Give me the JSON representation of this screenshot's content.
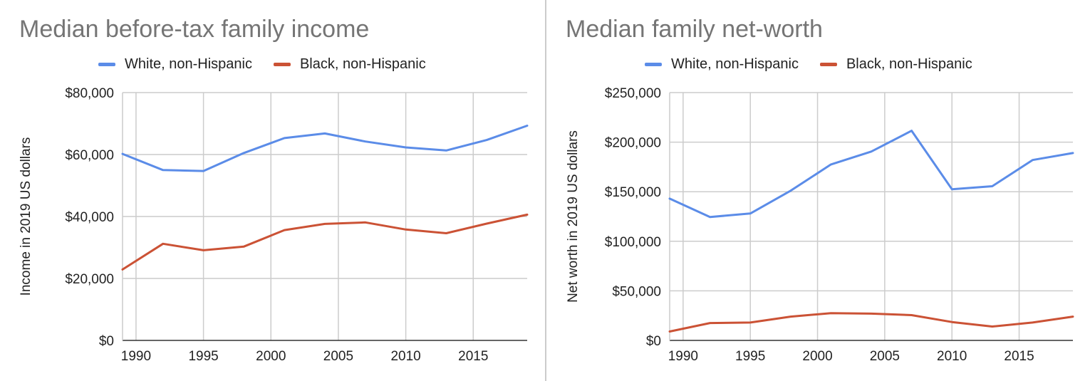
{
  "chart_data": [
    {
      "type": "line",
      "title": "Median before-tax family income",
      "xlabel": "",
      "ylabel": "Income in 2019 US dollars",
      "xlim": [
        1989,
        2019
      ],
      "ylim": [
        0,
        80000
      ],
      "x_ticks": [
        1990,
        1995,
        2000,
        2005,
        2010,
        2015
      ],
      "y_ticks": [
        0,
        20000,
        40000,
        60000,
        80000
      ],
      "y_tick_labels": [
        "$0",
        "$20,000",
        "$40,000",
        "$60,000",
        "$80,000"
      ],
      "legend_position": "top",
      "grid": true,
      "x": [
        1989,
        1992,
        1995,
        1998,
        2001,
        2004,
        2007,
        2010,
        2013,
        2016,
        2019
      ],
      "series": [
        {
          "name": "White, non-Hispanic",
          "color": "#5B8CE8",
          "values": [
            60200,
            55000,
            54700,
            60500,
            65300,
            66800,
            64200,
            62300,
            61300,
            64700,
            69300
          ]
        },
        {
          "name": "Black, non-Hispanic",
          "color": "#CB5235",
          "values": [
            22900,
            31200,
            29100,
            30300,
            35600,
            37600,
            38100,
            35800,
            34600,
            37700,
            40600
          ]
        }
      ]
    },
    {
      "type": "line",
      "title": "Median family net-worth",
      "xlabel": "",
      "ylabel": "Net worth in 2019 US dollars",
      "xlim": [
        1989,
        2019
      ],
      "ylim": [
        0,
        250000
      ],
      "x_ticks": [
        1990,
        1995,
        2000,
        2005,
        2010,
        2015
      ],
      "y_ticks": [
        0,
        50000,
        100000,
        150000,
        200000,
        250000
      ],
      "y_tick_labels": [
        "$0",
        "$50,000",
        "$100,000",
        "$150,000",
        "$200,000",
        "$250,000"
      ],
      "legend_position": "top",
      "grid": true,
      "x": [
        1989,
        1992,
        1995,
        1998,
        2001,
        2004,
        2007,
        2010,
        2013,
        2016,
        2019
      ],
      "series": [
        {
          "name": "White, non-Hispanic",
          "color": "#5B8CE8",
          "values": [
            143000,
            124500,
            128000,
            151000,
            177500,
            190500,
            211500,
            152500,
            155500,
            182000,
            189000
          ]
        },
        {
          "name": "Black, non-Hispanic",
          "color": "#CB5235",
          "values": [
            9000,
            17500,
            18000,
            24000,
            27500,
            27000,
            25500,
            18500,
            14000,
            18000,
            24000
          ]
        }
      ]
    }
  ]
}
